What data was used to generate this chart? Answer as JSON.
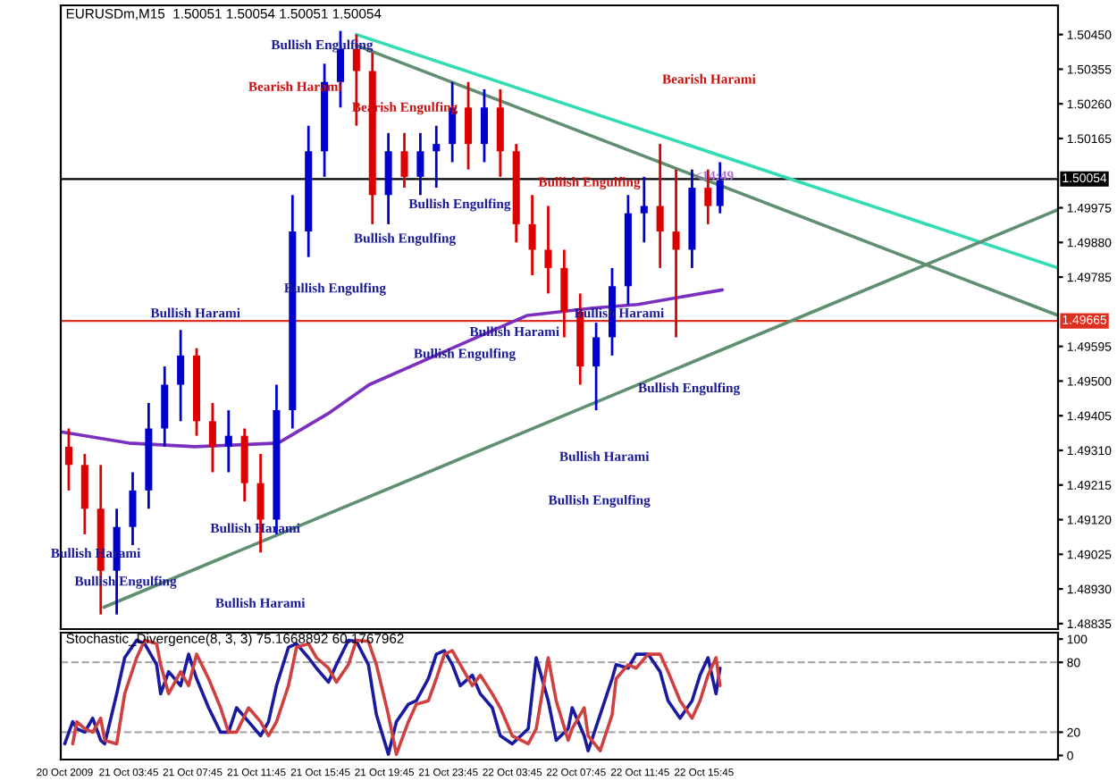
{
  "chart_data": [
    {
      "type": "candlestick",
      "title": "EURUSDm,M15  1.50051 1.50054 1.50051 1.50054",
      "x": [
        "2009-10-21T00:00",
        "2009-10-21T01:00",
        "2009-10-21T02:00",
        "2009-10-21T03:00",
        "2009-10-21T04:00",
        "2009-10-21T05:00",
        "2009-10-21T06:00",
        "2009-10-21T07:00",
        "2009-10-21T08:00",
        "2009-10-21T09:00",
        "2009-10-21T10:00",
        "2009-10-21T11:00",
        "2009-10-21T12:00",
        "2009-10-21T13:00",
        "2009-10-21T14:00",
        "2009-10-21T15:00",
        "2009-10-21T16:00",
        "2009-10-21T17:00",
        "2009-10-21T18:00",
        "2009-10-21T19:00",
        "2009-10-21T20:00",
        "2009-10-21T21:00",
        "2009-10-21T22:00",
        "2009-10-21T23:00",
        "2009-10-22T00:00",
        "2009-10-22T01:00",
        "2009-10-22T02:00",
        "2009-10-22T03:00",
        "2009-10-22T04:00",
        "2009-10-22T05:00",
        "2009-10-22T06:00",
        "2009-10-22T07:00",
        "2009-10-22T08:00",
        "2009-10-22T09:00",
        "2009-10-22T10:00",
        "2009-10-22T11:00",
        "2009-10-22T12:00",
        "2009-10-22T13:00",
        "2009-10-22T14:00",
        "2009-10-22T15:00",
        "2009-10-22T16:00",
        "2009-10-22T16:45"
      ],
      "ohlc": [
        [
          1.4932,
          1.4937,
          1.492,
          1.4927
        ],
        [
          1.4927,
          1.493,
          1.4908,
          1.4915
        ],
        [
          1.4915,
          1.4927,
          1.4886,
          1.4898
        ],
        [
          1.4898,
          1.4915,
          1.4886,
          1.491
        ],
        [
          1.491,
          1.4925,
          1.4905,
          1.492
        ],
        [
          1.492,
          1.4944,
          1.4915,
          1.4937
        ],
        [
          1.4937,
          1.4954,
          1.4932,
          1.4949
        ],
        [
          1.4949,
          1.4964,
          1.4939,
          1.4957
        ],
        [
          1.4957,
          1.4959,
          1.4935,
          1.4939
        ],
        [
          1.4939,
          1.4944,
          1.4925,
          1.4932
        ],
        [
          1.4932,
          1.4942,
          1.4925,
          1.4935
        ],
        [
          1.4935,
          1.4937,
          1.4917,
          1.4922
        ],
        [
          1.4922,
          1.493,
          1.4903,
          1.4912
        ],
        [
          1.4912,
          1.4949,
          1.4908,
          1.4942
        ],
        [
          1.4942,
          1.5001,
          1.4937,
          1.4991
        ],
        [
          1.4991,
          1.502,
          1.4984,
          1.5013
        ],
        [
          1.5013,
          1.5037,
          1.5006,
          1.5032
        ],
        [
          1.5032,
          1.5046,
          1.5025,
          1.5041
        ],
        [
          1.5041,
          1.5045,
          1.502,
          1.5035
        ],
        [
          1.5035,
          1.504,
          1.4993,
          1.5001
        ],
        [
          1.5001,
          1.5018,
          1.4993,
          1.5013
        ],
        [
          1.5013,
          1.5018,
          1.5003,
          1.5006
        ],
        [
          1.5006,
          1.5018,
          1.5001,
          1.5013
        ],
        [
          1.5013,
          1.502,
          1.5003,
          1.5015
        ],
        [
          1.5015,
          1.5032,
          1.501,
          1.5025
        ],
        [
          1.5025,
          1.5032,
          1.5008,
          1.5015
        ],
        [
          1.5015,
          1.503,
          1.501,
          1.5025
        ],
        [
          1.5025,
          1.503,
          1.5006,
          1.5013
        ],
        [
          1.5013,
          1.5015,
          1.4988,
          1.4993
        ],
        [
          1.4993,
          1.5001,
          1.4979,
          1.4986
        ],
        [
          1.4986,
          1.4998,
          1.4974,
          1.4981
        ],
        [
          1.4981,
          1.4986,
          1.4962,
          1.4969
        ],
        [
          1.4969,
          1.4974,
          1.4949,
          1.4954
        ],
        [
          1.4954,
          1.4966,
          1.4942,
          1.4962
        ],
        [
          1.4962,
          1.4981,
          1.4957,
          1.4976
        ],
        [
          1.4976,
          1.5001,
          1.4971,
          1.4996
        ],
        [
          1.4996,
          1.5006,
          1.4988,
          1.4998
        ],
        [
          1.4998,
          1.5015,
          1.4981,
          1.4991
        ],
        [
          1.4991,
          1.5008,
          1.4962,
          1.4986
        ],
        [
          1.4986,
          1.5008,
          1.4981,
          1.5003
        ],
        [
          1.5003,
          1.5008,
          1.4993,
          1.4998
        ],
        [
          1.4998,
          1.501,
          1.4996,
          1.5005
        ]
      ],
      "colors": [
        "#dd0000",
        "#dd0000",
        "#dd0000",
        "#0000cc",
        "#0000cc",
        "#0000cc",
        "#0000cc",
        "#0000cc",
        "#dd0000",
        "#dd0000",
        "#0000cc",
        "#dd0000",
        "#dd0000",
        "#0000cc",
        "#0000cc",
        "#0000cc",
        "#0000cc",
        "#0000cc",
        "#dd0000",
        "#dd0000",
        "#0000cc",
        "#dd0000",
        "#0000cc",
        "#0000cc",
        "#0000cc",
        "#dd0000",
        "#0000cc",
        "#dd0000",
        "#dd0000",
        "#dd0000",
        "#dd0000",
        "#dd0000",
        "#dd0000",
        "#0000cc",
        "#0000cc",
        "#0000cc",
        "#0000cc",
        "#dd0000",
        "#dd0000",
        "#0000cc",
        "#dd0000",
        "#0000cc"
      ],
      "series": [
        {
          "type": "line",
          "color": "#7a2fbf",
          "x": [
            "2009-10-20T23:36",
            "2009-10-21T03:45",
            "2009-10-21T07:54",
            "2009-10-21T13:06",
            "2009-10-21T16:12",
            "2009-10-21T18:48",
            "2009-10-22T00:30",
            "2009-10-22T04:42",
            "2009-10-22T08:48",
            "2009-10-22T11:36",
            "2009-10-22T16:54"
          ],
          "values": [
            1.4936,
            1.4933,
            1.4932,
            1.4933,
            1.4941,
            1.4949,
            1.496,
            1.4968,
            1.497,
            1.4971,
            1.4975
          ]
        },
        {
          "type": "line",
          "color": "#33dcb4",
          "x": [
            "2009-10-21T18:00",
            "2009-10-23T13:54"
          ],
          "values": [
            1.5045,
            1.4981
          ]
        },
        {
          "type": "line",
          "color": "#5f8f70",
          "x": [
            "2009-10-21T18:00",
            "2009-10-23T13:54"
          ],
          "values": [
            1.5042,
            1.4968
          ]
        },
        {
          "type": "line",
          "color": "#5f8f70",
          "x": [
            "2009-10-21T02:12",
            "2009-10-23T13:54"
          ],
          "values": [
            1.4888,
            1.4997
          ]
        }
      ],
      "xlim": [
        "2009-10-20T23:30",
        "2009-10-23T13:54"
      ],
      "ylim": [
        1.4882,
        1.5053
      ],
      "yticks": [
        {
          "value": 1.5045,
          "label": "1.50450"
        },
        {
          "value": 1.50355,
          "label": "1.50355"
        },
        {
          "value": 1.5026,
          "label": "1.50260"
        },
        {
          "value": 1.50165,
          "label": "1.50165"
        },
        {
          "value": 1.49975,
          "label": "1.49975"
        },
        {
          "value": 1.4988,
          "label": "1.49880"
        },
        {
          "value": 1.49785,
          "label": "1.49785"
        },
        {
          "value": 1.49595,
          "label": "1.49595"
        },
        {
          "value": 1.495,
          "label": "1.49500"
        },
        {
          "value": 1.49405,
          "label": "1.49405"
        },
        {
          "value": 1.4931,
          "label": "1.49310"
        },
        {
          "value": 1.49215,
          "label": "1.49215"
        },
        {
          "value": 1.4912,
          "label": "1.49120"
        },
        {
          "value": 1.49025,
          "label": "1.49025"
        },
        {
          "value": 1.4893,
          "label": "1.48930"
        },
        {
          "value": 1.48835,
          "label": "1.48835"
        }
      ],
      "tick_labels": "y",
      "ref_lines": [
        {
          "axis": "y",
          "value": 1.50054,
          "label": "1.50054",
          "color": "#000000"
        },
        {
          "axis": "y",
          "value": 1.49665,
          "label": "1.49665",
          "color": "#dd3020"
        }
      ],
      "annotations": [
        "Bullish Engulfing",
        "Bearish Harami",
        "Bearish Engulfing",
        "Bullish Engulfing",
        "Bullish Engulfing",
        "Bullish Engulfing",
        "Bullish Harami",
        "Bullish Harami",
        "Bullish Engulfing",
        "Bullish Engulfing",
        "Bullish Harami",
        "Bullish Engulfing",
        "Bullish Harami",
        "Bullish Engulfing",
        "Bullish Engulfing",
        "Bullish Harami",
        "Bullish Harami",
        "Bullish Harami",
        "Bearish Harami",
        "<14:49"
      ]
    },
    {
      "type": "line",
      "title": "Stochastic_Divergence(8, 3, 3) 75.1668892 60.1767962",
      "series": [
        {
          "color": "#1a1aa0",
          "x": [
            "2009-10-20T23:45",
            "2009-10-21T00:15",
            "2009-10-21T00:30",
            "2009-10-21T01:00",
            "2009-10-21T01:30",
            "2009-10-21T02:00",
            "2009-10-21T02:15",
            "2009-10-21T03:00",
            "2009-10-21T03:30",
            "2009-10-21T04:15",
            "2009-10-21T04:45",
            "2009-10-21T05:30",
            "2009-10-21T05:45",
            "2009-10-21T06:15",
            "2009-10-21T07:00",
            "2009-10-21T07:30",
            "2009-10-21T08:00",
            "2009-10-21T08:45",
            "2009-10-21T09:30",
            "2009-10-21T10:00",
            "2009-10-21T10:30",
            "2009-10-21T11:15",
            "2009-10-21T12:00",
            "2009-10-21T12:30",
            "2009-10-21T13:00",
            "2009-10-21T13:45",
            "2009-10-21T14:15",
            "2009-10-21T15:00",
            "2009-10-21T15:30",
            "2009-10-21T16:15",
            "2009-10-21T16:45",
            "2009-10-21T17:30",
            "2009-10-21T18:00",
            "2009-10-21T18:45",
            "2009-10-21T19:15",
            "2009-10-21T20:00",
            "2009-10-21T20:30",
            "2009-10-21T21:15",
            "2009-10-21T21:45",
            "2009-10-21T22:30",
            "2009-10-21T23:00",
            "2009-10-21T23:30",
            "2009-10-22T00:00",
            "2009-10-22T00:30",
            "2009-10-22T01:15",
            "2009-10-22T01:45",
            "2009-10-22T02:30",
            "2009-10-22T03:00",
            "2009-10-22T03:45",
            "2009-10-22T04:45",
            "2009-10-22T05:15",
            "2009-10-22T06:00",
            "2009-10-22T06:30",
            "2009-10-22T07:15",
            "2009-10-22T07:30",
            "2009-10-22T08:15",
            "2009-10-22T08:30",
            "2009-10-22T09:15",
            "2009-10-22T10:00",
            "2009-10-22T10:15",
            "2009-10-22T11:00",
            "2009-10-22T11:30",
            "2009-10-22T12:15",
            "2009-10-22T13:00",
            "2009-10-22T13:30",
            "2009-10-22T14:15",
            "2009-10-22T15:00",
            "2009-10-22T15:30",
            "2009-10-22T16:00",
            "2009-10-22T16:30",
            "2009-10-22T16:45"
          ],
          "values": [
            10,
            29,
            23,
            20,
            32,
            13,
            10,
            53,
            84,
            99,
            96,
            78,
            53,
            72,
            60,
            87,
            66,
            41,
            20,
            20,
            41,
            29,
            17,
            29,
            60,
            93,
            96,
            84,
            75,
            63,
            78,
            99,
            98,
            78,
            35,
            1,
            29,
            44,
            47,
            66,
            87,
            90,
            78,
            60,
            69,
            53,
            41,
            17,
            10,
            23,
            84,
            47,
            13,
            23,
            41,
            17,
            4,
            35,
            66,
            78,
            75,
            87,
            87,
            72,
            47,
            32,
            47,
            69,
            84,
            53,
            75
          ]
        },
        {
          "color": "#d04040",
          "x": [
            "2009-10-21T00:15",
            "2009-10-21T00:30",
            "2009-10-21T01:00",
            "2009-10-21T01:30",
            "2009-10-21T02:00",
            "2009-10-21T02:15",
            "2009-10-21T03:00",
            "2009-10-21T03:30",
            "2009-10-21T04:15",
            "2009-10-21T04:45",
            "2009-10-21T05:30",
            "2009-10-21T05:45",
            "2009-10-21T06:15",
            "2009-10-21T07:00",
            "2009-10-21T07:30",
            "2009-10-21T08:00",
            "2009-10-21T08:45",
            "2009-10-21T09:30",
            "2009-10-21T10:00",
            "2009-10-21T10:30",
            "2009-10-21T11:15",
            "2009-10-21T12:00",
            "2009-10-21T12:30",
            "2009-10-21T13:00",
            "2009-10-21T13:45",
            "2009-10-21T14:15",
            "2009-10-21T15:00",
            "2009-10-21T15:30",
            "2009-10-21T16:15",
            "2009-10-21T16:45",
            "2009-10-21T17:30",
            "2009-10-21T18:00",
            "2009-10-21T18:45",
            "2009-10-21T19:15",
            "2009-10-21T20:00",
            "2009-10-21T20:30",
            "2009-10-21T21:15",
            "2009-10-21T21:45",
            "2009-10-21T22:30",
            "2009-10-21T23:00",
            "2009-10-21T23:30",
            "2009-10-22T00:00",
            "2009-10-22T00:30",
            "2009-10-22T01:15",
            "2009-10-22T01:45",
            "2009-10-22T02:30",
            "2009-10-22T03:00",
            "2009-10-22T03:45",
            "2009-10-22T04:45",
            "2009-10-22T05:15",
            "2009-10-22T06:00",
            "2009-10-22T06:30",
            "2009-10-22T07:15",
            "2009-10-22T07:30",
            "2009-10-22T08:15",
            "2009-10-22T08:30",
            "2009-10-22T09:15",
            "2009-10-22T10:00",
            "2009-10-22T10:15",
            "2009-10-22T11:00",
            "2009-10-22T11:30",
            "2009-10-22T12:15",
            "2009-10-22T13:00",
            "2009-10-22T13:30",
            "2009-10-22T14:15",
            "2009-10-22T15:00",
            "2009-10-22T15:30",
            "2009-10-22T16:00",
            "2009-10-22T16:30",
            "2009-10-22T16:45"
          ],
          "values": [
            10,
            29,
            23,
            20,
            32,
            13,
            10,
            53,
            84,
            99,
            96,
            78,
            53,
            72,
            60,
            87,
            66,
            41,
            20,
            20,
            41,
            29,
            17,
            29,
            60,
            93,
            96,
            84,
            75,
            63,
            78,
            99,
            98,
            78,
            35,
            1,
            29,
            44,
            47,
            66,
            87,
            90,
            78,
            60,
            69,
            53,
            41,
            17,
            10,
            23,
            84,
            47,
            13,
            23,
            41,
            17,
            4,
            35,
            66,
            78,
            75,
            87,
            87,
            72,
            47,
            32,
            47,
            69,
            84,
            60
          ]
        }
      ],
      "xlim": [
        "2009-10-20T23:30",
        "2009-10-23T13:54"
      ],
      "ylim": [
        -3.5,
        105.5
      ],
      "yticks": [
        0,
        20,
        80,
        100
      ],
      "xticks": [
        {
          "value": "2009-10-20T23:45",
          "label": "20 Oct 2009"
        },
        {
          "value": "2009-10-21T03:45",
          "label": "21 Oct 03:45"
        },
        {
          "value": "2009-10-21T07:45",
          "label": "21 Oct 07:45"
        },
        {
          "value": "2009-10-21T11:45",
          "label": "21 Oct 11:45"
        },
        {
          "value": "2009-10-21T15:45",
          "label": "21 Oct 15:45"
        },
        {
          "value": "2009-10-21T19:45",
          "label": "21 Oct 19:45"
        },
        {
          "value": "2009-10-21T23:45",
          "label": "21 Oct 23:45"
        },
        {
          "value": "2009-10-22T03:45",
          "label": "22 Oct 03:45"
        },
        {
          "value": "2009-10-22T07:45",
          "label": "22 Oct 07:45"
        },
        {
          "value": "2009-10-22T11:45",
          "label": "22 Oct 11:45"
        },
        {
          "value": "2009-10-22T15:45",
          "label": "22 Oct 15:45"
        }
      ],
      "ref_lines": [
        {
          "axis": "y",
          "value": 80,
          "color": "#aaaaaa",
          "line_style": "dashed"
        },
        {
          "axis": "y",
          "value": 20,
          "color": "#aaaaaa",
          "line_style": "dashed"
        }
      ]
    }
  ]
}
